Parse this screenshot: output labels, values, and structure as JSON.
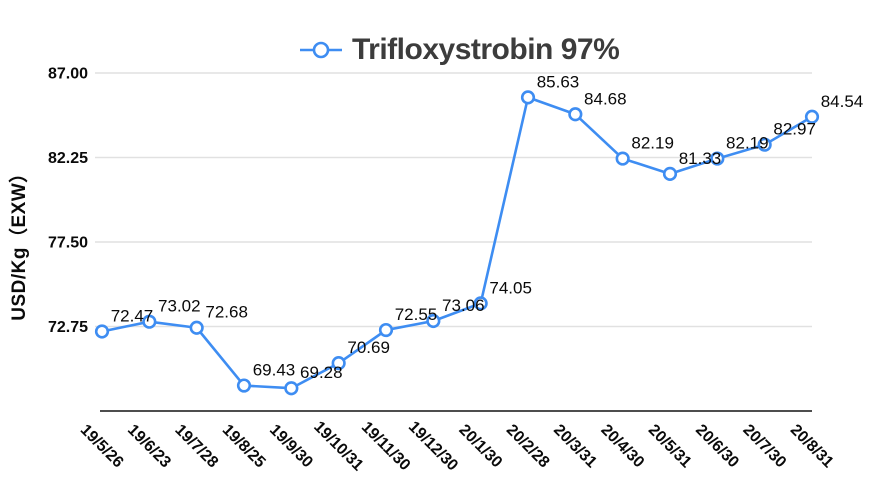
{
  "legend": {
    "label": "Trifloxystrobin 97%"
  },
  "y_axis": {
    "title": "USD/Kg（EXW）"
  },
  "chart_data": {
    "type": "line",
    "title": "Trifloxystrobin 97%",
    "xlabel": "",
    "ylabel": "USD/Kg（EXW）",
    "legend_position": "top-center",
    "grid": true,
    "categories": [
      "19/5/26",
      "19/6/23",
      "19/7/28",
      "19/8/25",
      "19/9/30",
      "19/10/31",
      "19/11/30",
      "19/12/30",
      "20/1/30",
      "20/2/28",
      "20/3/31",
      "20/4/30",
      "20/5/31",
      "20/6/30",
      "20/7/30",
      "20/8/31"
    ],
    "series": [
      {
        "name": "Trifloxystrobin 97%",
        "values": [
          72.47,
          73.02,
          72.68,
          69.43,
          69.28,
          70.69,
          72.55,
          73.06,
          74.05,
          85.63,
          84.68,
          82.19,
          81.33,
          82.19,
          82.97,
          84.54
        ]
      }
    ],
    "data_labels": [
      "72.47",
      "73.02",
      "72.68",
      "69.43",
      "69.28",
      "70.69",
      "72.55",
      "73.06",
      "74.05",
      "85.63",
      "84.68",
      "82.19",
      "81.33",
      "82.19",
      "82.97",
      "84.54"
    ],
    "ylim": [
      68,
      87
    ],
    "yticks": [
      {
        "value": 72.75,
        "label": "72.75"
      },
      {
        "value": 77.5,
        "label": "77.50"
      },
      {
        "value": 82.25,
        "label": "82.25"
      },
      {
        "value": 87.0,
        "label": "87.00"
      }
    ],
    "colors": {
      "line": "#3E8DF2",
      "marker_fill": "#FFFFFF",
      "grid": "#E1E1E1",
      "axis": "#4D4D4D",
      "label_text": "#0A0A0A",
      "title_text": "#3C3C3C"
    }
  }
}
